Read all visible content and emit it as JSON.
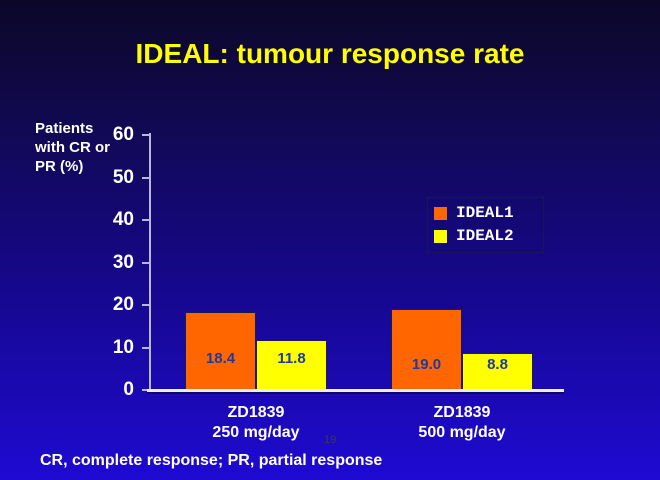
{
  "slide": {
    "title": "IDEAL: tumour response rate",
    "footnote": "CR, complete response; PR, partial response",
    "slide_number": "19"
  },
  "chart_data": {
    "type": "bar",
    "title": "IDEAL: tumour response rate",
    "ylabel": "Patients with CR or PR (%)",
    "ylabel_lines": [
      "Patients",
      "with CR or",
      "PR (%)"
    ],
    "categories": [
      [
        "ZD1839",
        "250 mg/day"
      ],
      [
        "ZD1839",
        "500 mg/day"
      ]
    ],
    "series": [
      {
        "name": "IDEAL1",
        "color": "#FF6600",
        "values": [
          18.4,
          19.0
        ]
      },
      {
        "name": "IDEAL2",
        "color": "#FFFF00",
        "values": [
          11.8,
          8.8
        ]
      }
    ],
    "ylim": [
      0,
      60
    ],
    "yticks": [
      0,
      10,
      20,
      30,
      40,
      50,
      60
    ],
    "value_labels": true,
    "legend_position": "right",
    "grid": false
  },
  "colors": {
    "background_top": "#0C0728",
    "background_bottom": "#1E0AD2",
    "title": "#FFFF00",
    "text": "#FFFFFF",
    "axis": "#B8B8D8",
    "baseline": "#EDEDF5",
    "value_label": "#1D3AA0",
    "bar_outline": "#1A1A55"
  }
}
